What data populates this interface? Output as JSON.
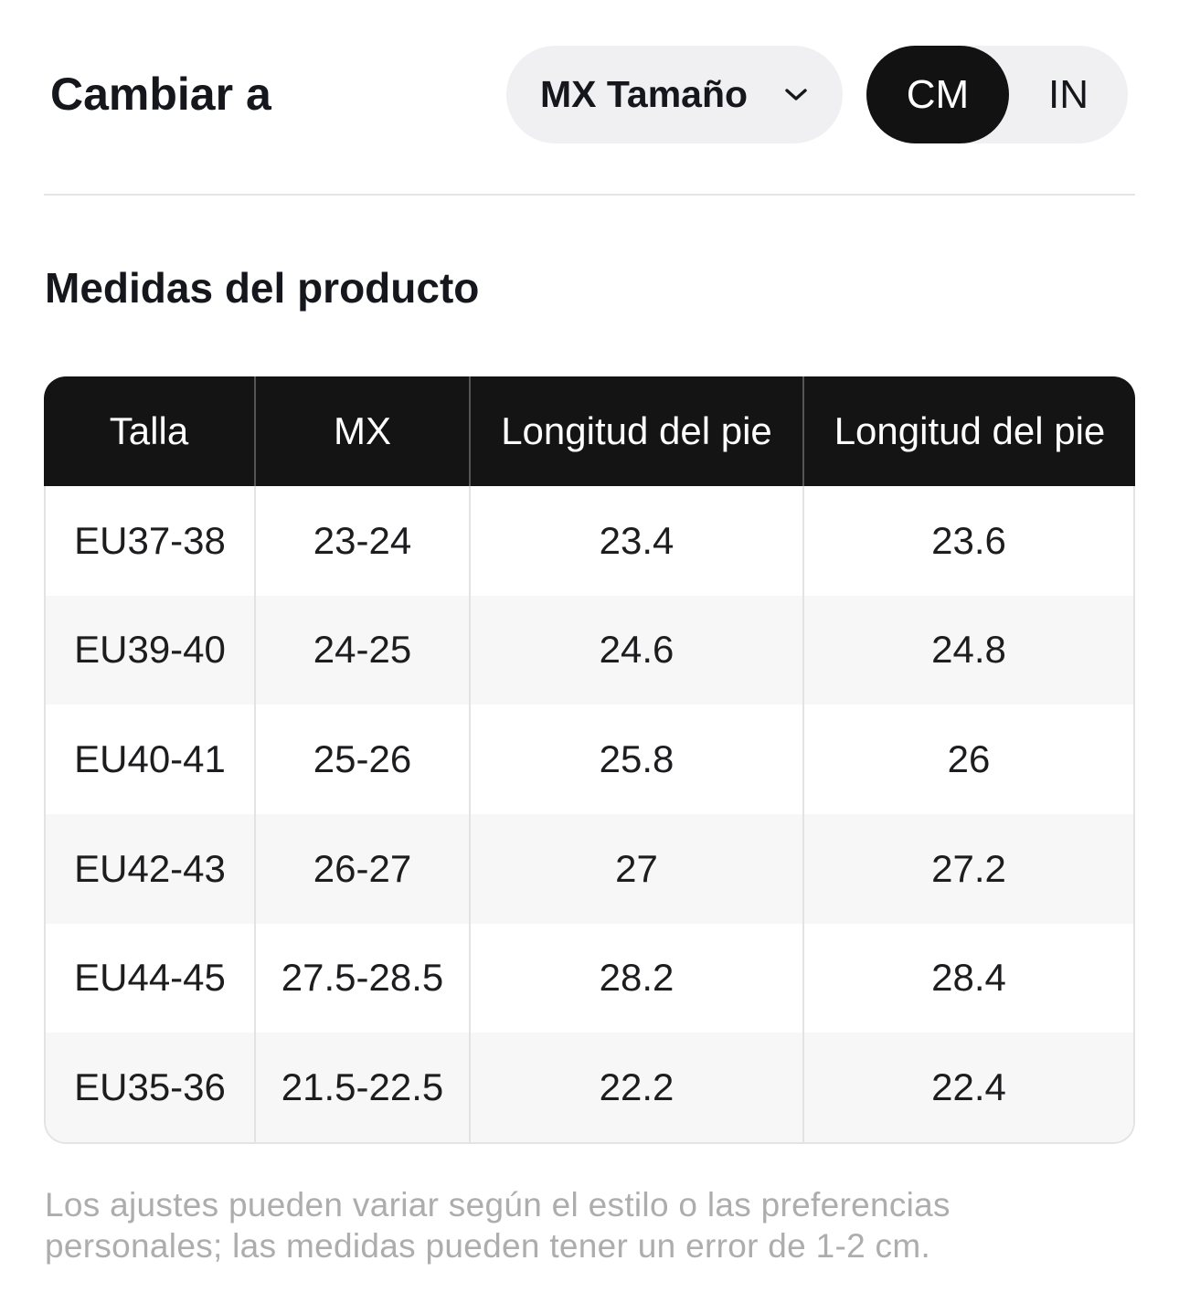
{
  "header": {
    "switch_label": "Cambiar a",
    "size_dropdown": {
      "value": "MX Tamaño",
      "icon": "chevron-down-icon"
    },
    "unit_toggle": {
      "options": [
        {
          "label": "CM",
          "selected": true
        },
        {
          "label": "IN",
          "selected": false
        }
      ]
    }
  },
  "section_title": "Medidas del producto",
  "size_table": {
    "columns": [
      "Talla",
      "MX",
      "Longitud del pie",
      "Longitud del pie"
    ],
    "rows": [
      [
        "EU37-38",
        "23-24",
        "23.4",
        "23.6"
      ],
      [
        "EU39-40",
        "24-25",
        "24.6",
        "24.8"
      ],
      [
        "EU40-41",
        "25-26",
        "25.8",
        "26"
      ],
      [
        "EU42-43",
        "26-27",
        "27",
        "27.2"
      ],
      [
        "EU44-45",
        "27.5-28.5",
        "28.2",
        "28.4"
      ],
      [
        "EU35-36",
        "21.5-22.5",
        "22.2",
        "22.4"
      ]
    ]
  },
  "note": "Los ajustes pueden variar según el estilo o las preferencias personales; las medidas pueden tener un error de 1-2 cm.",
  "colors": {
    "text": "#15171c",
    "table_header_bg": "#141414",
    "selected_unit_bg": "#121212",
    "pill_bg": "#f0f0f2",
    "row_stripe": "#f7f7f7",
    "grid_line": "#e3e3e5",
    "muted_text": "#adadad"
  }
}
